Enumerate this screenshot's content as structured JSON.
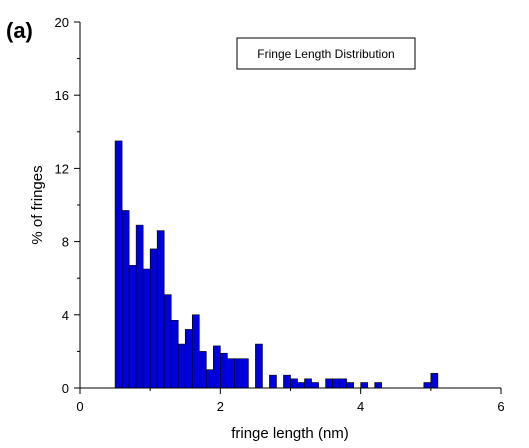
{
  "panel_label": "(a)",
  "chart_data": {
    "type": "bar",
    "title": "",
    "xlabel": "fringe length (nm)",
    "ylabel": "% of  fringes",
    "xlim": [
      0,
      6
    ],
    "ylim": [
      0,
      20
    ],
    "x_ticks": [
      0,
      2,
      4,
      6
    ],
    "y_ticks": [
      0,
      4,
      8,
      12,
      16,
      20
    ],
    "grid": false,
    "legend": {
      "position": "top-right",
      "entries": [
        "Fringe Length Distribution"
      ]
    },
    "bar_color": "#0000dd",
    "bin_width": 0.1,
    "bars": [
      {
        "x": 0.55,
        "y": 13.5
      },
      {
        "x": 0.65,
        "y": 9.7
      },
      {
        "x": 0.75,
        "y": 6.7
      },
      {
        "x": 0.85,
        "y": 8.9
      },
      {
        "x": 0.95,
        "y": 6.5
      },
      {
        "x": 1.05,
        "y": 7.6
      },
      {
        "x": 1.15,
        "y": 8.6
      },
      {
        "x": 1.25,
        "y": 5.1
      },
      {
        "x": 1.35,
        "y": 3.7
      },
      {
        "x": 1.45,
        "y": 2.4
      },
      {
        "x": 1.55,
        "y": 3.2
      },
      {
        "x": 1.65,
        "y": 4.0
      },
      {
        "x": 1.75,
        "y": 2.0
      },
      {
        "x": 1.85,
        "y": 1.0
      },
      {
        "x": 1.95,
        "y": 2.3
      },
      {
        "x": 2.05,
        "y": 1.9
      },
      {
        "x": 2.15,
        "y": 1.6
      },
      {
        "x": 2.25,
        "y": 1.6
      },
      {
        "x": 2.35,
        "y": 1.6
      },
      {
        "x": 2.45,
        "y": 0.0
      },
      {
        "x": 2.55,
        "y": 2.4
      },
      {
        "x": 2.65,
        "y": 0.0
      },
      {
        "x": 2.75,
        "y": 0.7
      },
      {
        "x": 2.85,
        "y": 0.0
      },
      {
        "x": 2.95,
        "y": 0.7
      },
      {
        "x": 3.05,
        "y": 0.5
      },
      {
        "x": 3.15,
        "y": 0.3
      },
      {
        "x": 3.25,
        "y": 0.5
      },
      {
        "x": 3.35,
        "y": 0.3
      },
      {
        "x": 3.45,
        "y": 0.0
      },
      {
        "x": 3.55,
        "y": 0.5
      },
      {
        "x": 3.65,
        "y": 0.5
      },
      {
        "x": 3.75,
        "y": 0.5
      },
      {
        "x": 3.85,
        "y": 0.3
      },
      {
        "x": 3.95,
        "y": 0.0
      },
      {
        "x": 4.05,
        "y": 0.3
      },
      {
        "x": 4.15,
        "y": 0.0
      },
      {
        "x": 4.25,
        "y": 0.3
      },
      {
        "x": 4.95,
        "y": 0.3
      },
      {
        "x": 5.05,
        "y": 0.8
      }
    ]
  }
}
